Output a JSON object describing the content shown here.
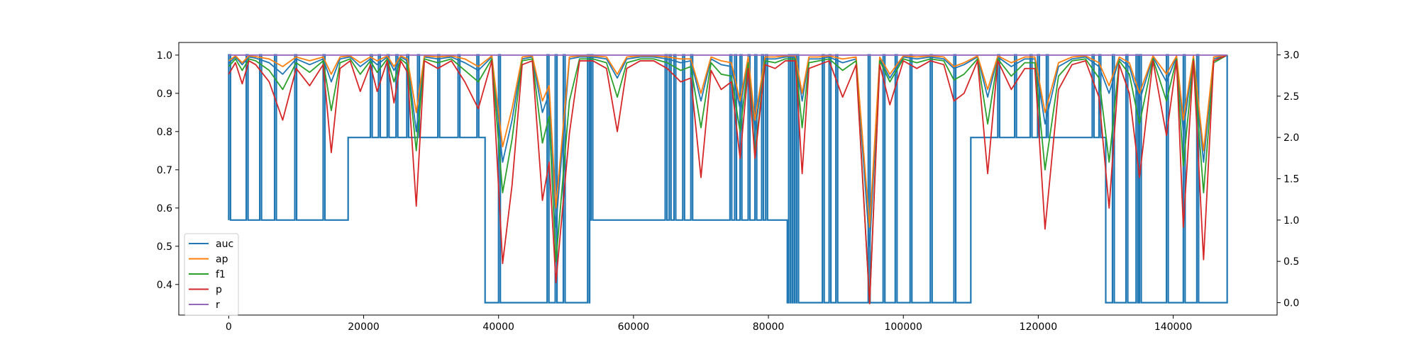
{
  "chart_data": {
    "type": "line",
    "title": "",
    "xlabel": "",
    "ylabel": "",
    "xlim": [
      -7400,
      155400
    ],
    "ylim": [
      0.32,
      1.033
    ],
    "ylim_right": [
      -0.15,
      3.15
    ],
    "grid": false,
    "legend_position": "lower-left",
    "x_ticks": [
      {
        "value": 0,
        "label": "0"
      },
      {
        "value": 20000,
        "label": "20000"
      },
      {
        "value": 40000,
        "label": "40000"
      },
      {
        "value": 60000,
        "label": "60000"
      },
      {
        "value": 80000,
        "label": "80000"
      },
      {
        "value": 100000,
        "label": "100000"
      },
      {
        "value": 120000,
        "label": "120000"
      },
      {
        "value": 140000,
        "label": "140000"
      }
    ],
    "y_ticks": [
      {
        "value": 0.4,
        "label": "0.4"
      },
      {
        "value": 0.5,
        "label": "0.5"
      },
      {
        "value": 0.6,
        "label": "0.6"
      },
      {
        "value": 0.7,
        "label": "0.7"
      },
      {
        "value": 0.8,
        "label": "0.8"
      },
      {
        "value": 0.9,
        "label": "0.9"
      },
      {
        "value": 1.0,
        "label": "1.0"
      }
    ],
    "y_right_ticks": [
      {
        "value": 0.0,
        "label": "0.0"
      },
      {
        "value": 0.5,
        "label": "0.5"
      },
      {
        "value": 1.0,
        "label": "1.0"
      },
      {
        "value": 1.5,
        "label": "1.5"
      },
      {
        "value": 2.0,
        "label": "2.0"
      },
      {
        "value": 2.5,
        "label": "2.5"
      },
      {
        "value": 3.0,
        "label": "3.0"
      }
    ],
    "series": [
      {
        "name": "auc",
        "color": "#1f77b4",
        "x": [
          0,
          1000,
          2000,
          3000,
          4000,
          6000,
          8000,
          10000,
          12000,
          14000,
          15200,
          16500,
          18000,
          19500,
          21000,
          22000,
          23500,
          24500,
          25500,
          26500,
          27800,
          29000,
          31000,
          33000,
          35000,
          37000,
          39000,
          40600,
          42000,
          43500,
          45000,
          46500,
          47500,
          48500,
          50500,
          52000,
          54000,
          56000,
          57600,
          59000,
          61000,
          63000,
          65000,
          67000,
          68500,
          70000,
          71500,
          73000,
          74500,
          75800,
          77000,
          78000,
          79500,
          81000,
          82500,
          84000,
          85000,
          86000,
          87500,
          89000,
          91000,
          93000,
          95000,
          96500,
          98000,
          100000,
          102000,
          104000,
          106000,
          107500,
          109000,
          111000,
          112500,
          114000,
          116000,
          118000,
          119500,
          121000,
          123000,
          125000,
          127000,
          129000,
          130500,
          132000,
          133500,
          135000,
          137000,
          139000,
          140500,
          141500,
          143000,
          144500,
          146000,
          148000
        ],
        "values": [
          0.978,
          0.995,
          0.975,
          0.995,
          0.992,
          0.98,
          0.95,
          0.99,
          0.975,
          0.99,
          0.93,
          0.99,
          0.995,
          0.97,
          0.99,
          0.975,
          0.995,
          0.96,
          0.995,
          0.985,
          0.8,
          0.995,
          0.99,
          0.995,
          0.98,
          0.96,
          0.995,
          0.72,
          0.83,
          0.99,
          0.995,
          0.85,
          0.9,
          0.55,
          0.99,
          0.995,
          0.995,
          0.99,
          0.94,
          0.99,
          0.995,
          0.995,
          0.99,
          0.98,
          0.985,
          0.88,
          0.99,
          0.975,
          0.97,
          0.86,
          0.99,
          0.8,
          0.99,
          0.99,
          0.995,
          0.995,
          0.88,
          0.99,
          0.99,
          0.995,
          0.98,
          0.99,
          0.5,
          0.99,
          0.94,
          0.995,
          0.99,
          0.995,
          0.99,
          0.965,
          0.975,
          0.995,
          0.89,
          0.995,
          0.97,
          0.99,
          0.99,
          0.82,
          0.97,
          0.99,
          0.995,
          0.97,
          0.9,
          0.99,
          0.97,
          0.88,
          0.995,
          0.93,
          0.995,
          0.8,
          0.995,
          0.72,
          0.99,
          1.0
        ]
      },
      {
        "name": "ap",
        "color": "#ff7f0e",
        "x": [
          0,
          1000,
          2000,
          3000,
          4000,
          6000,
          8000,
          10000,
          12000,
          14000,
          15200,
          16500,
          18000,
          19500,
          21000,
          22000,
          23500,
          24500,
          25500,
          26500,
          27800,
          29000,
          31000,
          33000,
          35000,
          37000,
          39000,
          40600,
          42000,
          43500,
          45000,
          46500,
          47500,
          48500,
          50500,
          52000,
          54000,
          56000,
          57600,
          59000,
          61000,
          63000,
          65000,
          67000,
          68500,
          70000,
          71500,
          73000,
          74500,
          75800,
          77000,
          78000,
          79500,
          81000,
          82500,
          84000,
          85000,
          86000,
          87500,
          89000,
          91000,
          93000,
          95000,
          96500,
          98000,
          100000,
          102000,
          104000,
          106000,
          107500,
          109000,
          111000,
          112500,
          114000,
          116000,
          118000,
          119500,
          121000,
          123000,
          125000,
          127000,
          129000,
          130500,
          132000,
          133500,
          135000,
          137000,
          139000,
          140500,
          141500,
          143000,
          144500,
          146000,
          148000
        ],
        "values": [
          0.985,
          0.998,
          0.98,
          0.998,
          0.996,
          0.99,
          0.97,
          0.995,
          0.985,
          0.995,
          0.95,
          0.995,
          0.998,
          0.98,
          0.995,
          0.985,
          0.998,
          0.97,
          0.998,
          0.99,
          0.85,
          0.998,
          0.995,
          0.998,
          0.99,
          0.97,
          0.998,
          0.76,
          0.86,
          0.995,
          0.998,
          0.88,
          0.92,
          0.6,
          0.995,
          0.998,
          0.998,
          0.995,
          0.95,
          0.995,
          0.998,
          0.998,
          0.995,
          0.99,
          0.99,
          0.9,
          0.995,
          0.985,
          0.98,
          0.88,
          0.995,
          0.83,
          0.995,
          0.995,
          0.998,
          0.998,
          0.9,
          0.995,
          0.995,
          0.998,
          0.99,
          0.995,
          0.55,
          0.995,
          0.95,
          0.998,
          0.995,
          0.998,
          0.995,
          0.97,
          0.98,
          0.998,
          0.91,
          0.998,
          0.98,
          0.995,
          0.995,
          0.85,
          0.98,
          0.995,
          0.998,
          0.98,
          0.92,
          0.995,
          0.98,
          0.9,
          0.998,
          0.95,
          0.998,
          0.83,
          0.998,
          0.75,
          0.995,
          1.0
        ]
      },
      {
        "name": "f1",
        "color": "#2ca02c",
        "x": [
          0,
          1000,
          2000,
          3000,
          4000,
          6000,
          8000,
          10000,
          12000,
          14000,
          15200,
          16500,
          18000,
          19500,
          21000,
          22000,
          23500,
          24500,
          25500,
          26500,
          27800,
          29000,
          31000,
          33000,
          35000,
          37000,
          39000,
          40600,
          42000,
          43500,
          45000,
          46500,
          47500,
          48500,
          50500,
          52000,
          54000,
          56000,
          57600,
          59000,
          61000,
          63000,
          65000,
          67000,
          68500,
          70000,
          71500,
          73000,
          74500,
          75800,
          77000,
          78000,
          79500,
          81000,
          82500,
          84000,
          85000,
          86000,
          87500,
          89000,
          91000,
          93000,
          95000,
          96500,
          98000,
          100000,
          102000,
          104000,
          106000,
          107500,
          109000,
          111000,
          112500,
          114000,
          116000,
          118000,
          119500,
          121000,
          123000,
          125000,
          127000,
          129000,
          130500,
          132000,
          133500,
          135000,
          137000,
          139000,
          140500,
          141500,
          143000,
          144500,
          146000,
          148000
        ],
        "values": [
          0.97,
          0.99,
          0.96,
          0.99,
          0.985,
          0.96,
          0.91,
          0.98,
          0.955,
          0.985,
          0.855,
          0.98,
          0.99,
          0.95,
          0.985,
          0.955,
          0.99,
          0.93,
          0.99,
          0.975,
          0.75,
          0.99,
          0.98,
          0.99,
          0.96,
          0.93,
          0.99,
          0.64,
          0.78,
          0.985,
          0.99,
          0.77,
          0.84,
          0.46,
          0.88,
          0.99,
          0.99,
          0.98,
          0.89,
          0.98,
          0.99,
          0.99,
          0.98,
          0.96,
          0.97,
          0.81,
          0.98,
          0.95,
          0.945,
          0.8,
          0.98,
          0.74,
          0.985,
          0.98,
          0.99,
          0.99,
          0.81,
          0.98,
          0.985,
          0.99,
          0.96,
          0.985,
          0.35,
          0.985,
          0.93,
          0.99,
          0.98,
          0.99,
          0.985,
          0.935,
          0.95,
          0.99,
          0.82,
          0.99,
          0.945,
          0.98,
          0.98,
          0.7,
          0.945,
          0.985,
          0.99,
          0.94,
          0.72,
          0.985,
          0.95,
          0.82,
          0.99,
          0.88,
          0.99,
          0.71,
          0.99,
          0.64,
          0.98,
          1.0
        ]
      },
      {
        "name": "p",
        "color": "#d62728",
        "x": [
          0,
          1000,
          2000,
          3000,
          4000,
          6000,
          8000,
          10000,
          12000,
          14000,
          15200,
          16500,
          18000,
          19500,
          21000,
          22000,
          23500,
          24500,
          25500,
          26500,
          27800,
          29000,
          31000,
          33000,
          35000,
          37000,
          39000,
          40600,
          42000,
          43500,
          45000,
          46500,
          47500,
          48500,
          50500,
          52000,
          54000,
          56000,
          57600,
          59000,
          61000,
          63000,
          65000,
          67000,
          68500,
          70000,
          71500,
          73000,
          74500,
          75800,
          77000,
          78000,
          79500,
          81000,
          82500,
          84000,
          85000,
          86000,
          87500,
          89000,
          91000,
          93000,
          95000,
          96500,
          98000,
          100000,
          102000,
          104000,
          106000,
          107500,
          109000,
          111000,
          112500,
          114000,
          116000,
          118000,
          119500,
          121000,
          123000,
          125000,
          127000,
          129000,
          130500,
          132000,
          133500,
          135000,
          137000,
          139000,
          140500,
          141500,
          143000,
          144500,
          146000,
          148000
        ],
        "values": [
          0.95,
          0.98,
          0.925,
          0.985,
          0.975,
          0.93,
          0.83,
          0.965,
          0.92,
          0.975,
          0.745,
          0.965,
          0.985,
          0.905,
          0.975,
          0.905,
          0.985,
          0.875,
          0.985,
          0.955,
          0.605,
          0.985,
          0.965,
          0.985,
          0.93,
          0.86,
          0.985,
          0.455,
          0.66,
          0.975,
          0.985,
          0.62,
          0.72,
          0.405,
          0.795,
          0.985,
          0.985,
          0.965,
          0.8,
          0.965,
          0.985,
          0.985,
          0.965,
          0.93,
          0.94,
          0.68,
          0.96,
          0.91,
          0.93,
          0.73,
          0.965,
          0.73,
          0.975,
          0.965,
          0.985,
          0.985,
          0.69,
          0.965,
          0.975,
          0.985,
          0.89,
          0.975,
          0.35,
          0.975,
          0.87,
          0.985,
          0.965,
          0.985,
          0.975,
          0.88,
          0.9,
          0.985,
          0.69,
          0.985,
          0.91,
          0.965,
          0.965,
          0.545,
          0.91,
          0.975,
          0.985,
          0.89,
          0.6,
          0.975,
          0.9,
          0.68,
          0.985,
          0.79,
          0.985,
          0.55,
          0.985,
          0.465,
          0.985,
          1.0
        ]
      },
      {
        "name": "r",
        "color": "#9467bd",
        "x": [
          0,
          148000
        ],
        "values": [
          1.0,
          1.0
        ]
      }
    ],
    "secondary_series": {
      "axis": "right",
      "color": "#1f77b4",
      "segments": [
        {
          "x0": 0,
          "x1": 17700,
          "level": 1.0
        },
        {
          "x0": 17700,
          "x1": 38000,
          "level": 2.0
        },
        {
          "x0": 38000,
          "x1": 53500,
          "level": 0.0
        },
        {
          "x0": 53500,
          "x1": 82800,
          "level": 1.0
        },
        {
          "x0": 82800,
          "x1": 110000,
          "level": 0.0
        },
        {
          "x0": 110000,
          "x1": 130000,
          "level": 2.0
        },
        {
          "x0": 130000,
          "x1": 148000,
          "level": 0.0
        }
      ],
      "spikes": [
        0,
        2600,
        4600,
        6800,
        9800,
        14000,
        21000,
        22200,
        23500,
        24800,
        26400,
        28000,
        31000,
        34000,
        36800,
        40000,
        47200,
        48400,
        49600,
        53200,
        53700,
        64700,
        65300,
        66000,
        67300,
        68500,
        74300,
        75000,
        75800,
        77000,
        78000,
        79000,
        79600,
        83000,
        83300,
        83600,
        83900,
        84200,
        88000,
        89000,
        90000,
        94800,
        97000,
        98800,
        101000,
        104000,
        107500,
        114000,
        116500,
        118800,
        119900,
        121200,
        128000,
        129000,
        131000,
        133000,
        134500,
        135000,
        139000,
        141500,
        143500,
        148000
      ],
      "spike_level": 3.0
    }
  }
}
